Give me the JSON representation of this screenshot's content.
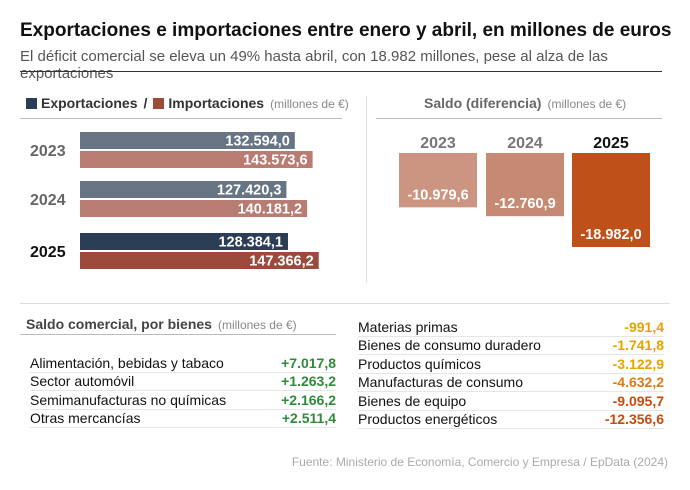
{
  "header": {
    "title": "Exportaciones e importaciones entre enero y abril, en millones de euros",
    "subtitle": "El déficit comercial se eleva un 49% hasta abril, con 18.982 millones, pese al alza de las exportaciones"
  },
  "legend": {
    "exports_label": "Exportaciones",
    "separator": "/",
    "imports_label": "Importaciones",
    "unit": "(millones de €)"
  },
  "saldo_panel": {
    "title": "Saldo (diferencia)",
    "unit": "(millones de €)"
  },
  "goods": {
    "title": "Saldo comercial, por bienes",
    "unit": "(millones de €)",
    "positive_rows": [
      {
        "label": "Alimentación, bebidas y tabaco",
        "value": "+7.017,8"
      },
      {
        "label": "Sector automóvil",
        "value": "+1.263,2"
      },
      {
        "label": "Semimanufacturas no químicas",
        "value": "+2.166,2"
      },
      {
        "label": "Otras mercancías",
        "value": "+2.511,4"
      }
    ],
    "negative_rows": [
      {
        "label": "Materias primas",
        "value": "-991,4",
        "tone": "neg-light"
      },
      {
        "label": "Bienes de consumo duradero",
        "value": "-1.741,8",
        "tone": "neg-light"
      },
      {
        "label": "Productos químicos",
        "value": "-3.122,9",
        "tone": "neg-light"
      },
      {
        "label": "Manufacturas de consumo",
        "value": "-4.632,2",
        "tone": "neg-mid"
      },
      {
        "label": "Bienes de equipo",
        "value": "-9.095,7",
        "tone": "neg-dark"
      },
      {
        "label": "Productos energéticos",
        "value": "-12.356,6",
        "tone": "neg-dark"
      }
    ]
  },
  "source": "Fuente: Ministerio de Economía, Comercio y Empresa / EpData (2024)",
  "colors": {
    "exports": "#2b3e55",
    "imports": "#9c4a3c",
    "saldo_old": "#c68a74",
    "saldo_latest": "#c0501a",
    "positive": "#2e8b3a"
  },
  "chart_data": [
    {
      "type": "bar",
      "orientation": "horizontal",
      "categories": [
        "2023",
        "2024",
        "2025"
      ],
      "series": [
        {
          "name": "Exportaciones",
          "values": [
            132594.0,
            127420.3,
            128384.1
          ],
          "labels": [
            "132.594,0",
            "127.420,3",
            "128.384,1"
          ]
        },
        {
          "name": "Importaciones",
          "values": [
            143573.6,
            140181.2,
            147366.2
          ],
          "labels": [
            "143.573,6",
            "140.181,2",
            "147.366,2"
          ]
        }
      ],
      "xlim": [
        0,
        150000
      ],
      "highlight_category": "2025"
    },
    {
      "type": "bar",
      "orientation": "vertical",
      "categories": [
        "2023",
        "2024",
        "2025"
      ],
      "values": [
        -10979.6,
        -12760.9,
        -18982.0
      ],
      "labels": [
        "-10.979,6",
        "-12.760,9",
        "-18.982,0"
      ],
      "ylim": [
        -20000,
        0
      ],
      "highlight_category": "2025"
    }
  ]
}
